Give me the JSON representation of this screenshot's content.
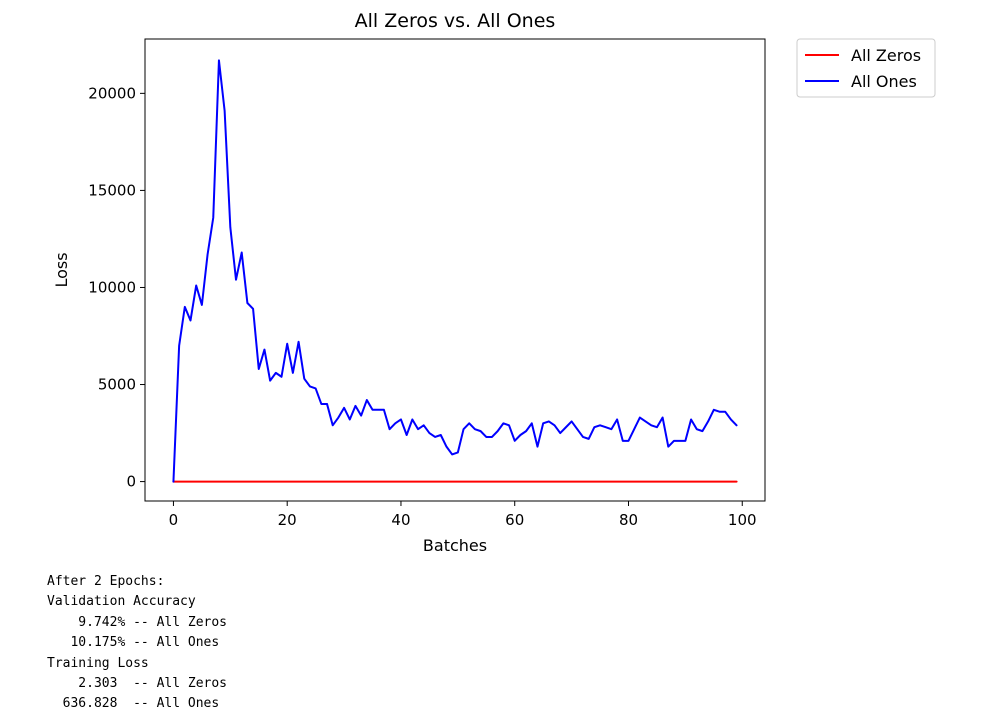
{
  "chart_data": {
    "type": "line",
    "title": "All Zeros vs. All Ones",
    "xlabel": "Batches",
    "ylabel": "Loss",
    "xlim": [
      -5,
      104
    ],
    "ylim": [
      -1000,
      22800
    ],
    "xticks": [
      0,
      20,
      40,
      60,
      80,
      100
    ],
    "yticks": [
      0,
      5000,
      10000,
      15000,
      20000
    ],
    "legend_position": "outside-top-right",
    "grid": false,
    "series": [
      {
        "name": "All Zeros",
        "color": "#ff0000",
        "values": [
          0,
          0,
          0,
          0,
          0,
          0,
          0,
          0,
          0,
          0,
          0,
          0,
          0,
          0,
          0,
          0,
          0,
          0,
          0,
          0,
          0,
          0,
          0,
          0,
          0,
          0,
          0,
          0,
          0,
          0,
          0,
          0,
          0,
          0,
          0,
          0,
          0,
          0,
          0,
          0,
          0,
          0,
          0,
          0,
          0,
          0,
          0,
          0,
          0,
          0,
          0,
          0,
          0,
          0,
          0,
          0,
          0,
          0,
          0,
          0,
          0,
          0,
          0,
          0,
          0,
          0,
          0,
          0,
          0,
          0,
          0,
          0,
          0,
          0,
          0,
          0,
          0,
          0,
          0,
          0,
          0,
          0,
          0,
          0,
          0,
          0,
          0,
          0,
          0,
          0,
          0,
          0,
          0,
          0,
          0,
          0,
          0,
          0,
          0,
          0
        ]
      },
      {
        "name": "All Ones",
        "color": "#0000ff",
        "values": [
          0,
          7000,
          9000,
          8300,
          10100,
          9100,
          11700,
          13600,
          21700,
          19100,
          13100,
          10400,
          11800,
          9200,
          8900,
          5800,
          6800,
          5200,
          5600,
          5400,
          7100,
          5600,
          7200,
          5300,
          4900,
          4800,
          4000,
          4000,
          2900,
          3300,
          3800,
          3200,
          3900,
          3400,
          4200,
          3700,
          3700,
          3700,
          2700,
          3000,
          3200,
          2400,
          3200,
          2700,
          2900,
          2500,
          2300,
          2400,
          1800,
          1400,
          1500,
          2700,
          3000,
          2700,
          2600,
          2300,
          2300,
          2600,
          3000,
          2900,
          2100,
          2400,
          2600,
          3000,
          1800,
          3000,
          3100,
          2900,
          2500,
          2800,
          3100,
          2700,
          2300,
          2200,
          2800,
          2900,
          2800,
          2700,
          3200,
          2100,
          2100,
          2700,
          3300,
          3100,
          2900,
          2800,
          3300,
          1800,
          2100,
          2100,
          2100,
          3200,
          2700,
          2600,
          3100,
          3700,
          3600,
          3600,
          3200,
          2900
        ]
      }
    ]
  },
  "output_text": {
    "lines": [
      "After 2 Epochs:",
      "Validation Accuracy",
      "    9.742% -- All Zeros",
      "   10.175% -- All Ones",
      "Training Loss",
      "    2.303  -- All Zeros",
      "  636.828  -- All Ones"
    ]
  }
}
